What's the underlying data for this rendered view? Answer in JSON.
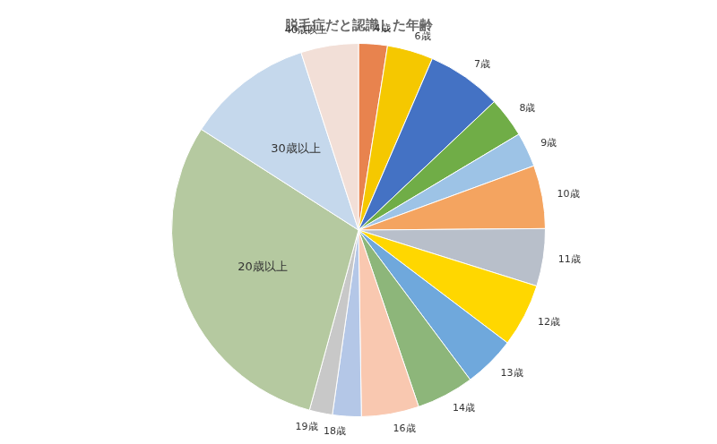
{
  "chart_data": {
    "type": "pie",
    "title": "脱毛症だと認識した年齢",
    "categories": [
      "4歳",
      "6歳",
      "7歳",
      "8歳",
      "9歳",
      "10歳",
      "11歳",
      "12歳",
      "13歳",
      "14歳",
      "16歳",
      "18歳",
      "19歳",
      "20歳以上",
      "30歳以上",
      "40歳以上"
    ],
    "values": [
      2.5,
      4.0,
      6.5,
      3.5,
      3.0,
      5.5,
      5.0,
      5.5,
      4.5,
      5.0,
      5.0,
      2.5,
      2.0,
      30.0,
      11.0,
      5.0
    ],
    "colors": [
      "#E8834E",
      "#F5C800",
      "#4472C4",
      "#70AD47",
      "#9DC3E6",
      "#F4A460",
      "#B8BFCA",
      "#FFD700",
      "#6FA8DC",
      "#8DB67A",
      "#F9C8B0",
      "#B4C7E7",
      "#C8C8C8",
      "#B5C9A0",
      "#C5D8EC",
      "#F2DFD7"
    ]
  }
}
